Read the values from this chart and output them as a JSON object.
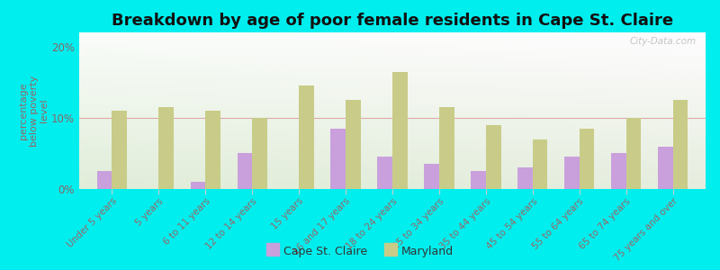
{
  "title": "Breakdown by age of poor female residents in Cape St. Claire",
  "categories": [
    "Under 5 years",
    "5 years",
    "6 to 11 years",
    "12 to 14 years",
    "15 years",
    "16 and 17 years",
    "18 to 24 years",
    "25 to 34 years",
    "35 to 44 years",
    "45 to 54 years",
    "55 to 64 years",
    "65 to 74 years",
    "75 years and over"
  ],
  "cape_values": [
    2.5,
    0.0,
    1.0,
    5.0,
    0.0,
    8.5,
    4.5,
    3.5,
    2.5,
    3.0,
    4.5,
    5.0,
    6.0
  ],
  "maryland_values": [
    11.0,
    11.5,
    11.0,
    10.0,
    14.5,
    12.5,
    16.5,
    11.5,
    9.0,
    7.0,
    8.5,
    10.0,
    12.5
  ],
  "cape_color": "#c9a0dc",
  "maryland_color": "#c8cc88",
  "background_outer": "#00eeee",
  "ylabel": "percentage\nbelow poverty\nlevel",
  "ylim": [
    0,
    22
  ],
  "yticks": [
    0,
    10,
    20
  ],
  "ytick_labels": [
    "0%",
    "10%",
    "20%"
  ],
  "title_fontsize": 13,
  "legend_cape": "Cape St. Claire",
  "legend_maryland": "Maryland",
  "watermark": "City-Data.com",
  "label_color": "#996666",
  "tick_color": "#886666"
}
